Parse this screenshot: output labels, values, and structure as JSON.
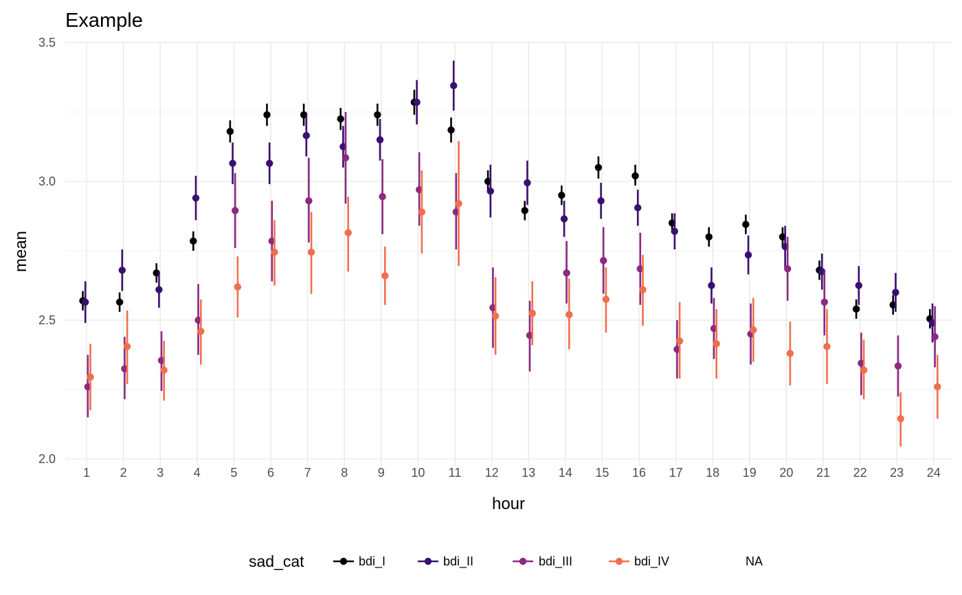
{
  "chart_data": {
    "type": "pointrange",
    "title": "Example",
    "xlabel": "hour",
    "ylabel": "mean",
    "ylim": [
      2.0,
      3.5
    ],
    "yticks": [
      "2.0",
      "2.5",
      "3.0",
      "3.5"
    ],
    "categories": [
      "1",
      "2",
      "3",
      "4",
      "5",
      "6",
      "7",
      "8",
      "9",
      "10",
      "11",
      "12",
      "13",
      "14",
      "15",
      "16",
      "17",
      "18",
      "19",
      "20",
      "21",
      "22",
      "23",
      "24"
    ],
    "grid": true,
    "legend": {
      "title": "sad_cat",
      "position": "bottom",
      "entries": [
        "bdi_I",
        "bdi_II",
        "bdi_III",
        "bdi_IV",
        "NA"
      ]
    },
    "series": [
      {
        "name": "bdi_I",
        "color": "#000004",
        "mean": [
          2.57,
          2.565,
          2.67,
          2.785,
          3.18,
          3.24,
          3.24,
          3.225,
          3.24,
          3.285,
          3.185,
          3.0,
          2.895,
          2.95,
          3.05,
          3.02,
          2.85,
          2.8,
          2.845,
          2.8,
          2.68,
          2.54,
          2.555,
          2.505
        ],
        "lower": [
          2.535,
          2.53,
          2.635,
          2.75,
          3.14,
          3.2,
          3.2,
          3.185,
          3.2,
          3.24,
          3.14,
          2.96,
          2.86,
          2.915,
          3.01,
          2.985,
          2.815,
          2.765,
          2.81,
          2.765,
          2.645,
          2.505,
          2.52,
          2.47
        ],
        "upper": [
          2.605,
          2.6,
          2.705,
          2.82,
          3.22,
          3.28,
          3.28,
          3.265,
          3.28,
          3.33,
          3.23,
          3.04,
          2.93,
          2.985,
          3.09,
          3.06,
          2.885,
          2.835,
          2.88,
          2.835,
          2.715,
          2.575,
          2.59,
          2.54
        ]
      },
      {
        "name": "bdi_II",
        "color": "#3B0F70",
        "mean": [
          2.565,
          2.68,
          2.61,
          2.94,
          3.065,
          3.065,
          3.165,
          3.125,
          3.15,
          3.285,
          3.345,
          2.965,
          2.995,
          2.865,
          2.93,
          2.905,
          2.82,
          2.625,
          2.735,
          2.765,
          2.675,
          2.625,
          2.6,
          2.49
        ],
        "lower": [
          2.49,
          2.605,
          2.545,
          2.86,
          2.99,
          2.99,
          3.09,
          3.05,
          3.075,
          3.205,
          3.255,
          2.87,
          2.915,
          2.8,
          2.865,
          2.84,
          2.755,
          2.56,
          2.665,
          2.69,
          2.61,
          2.555,
          2.53,
          2.42
        ],
        "upper": [
          2.64,
          2.755,
          2.675,
          3.02,
          3.14,
          3.14,
          3.24,
          3.2,
          3.225,
          3.365,
          3.435,
          3.06,
          3.075,
          2.93,
          2.995,
          2.97,
          2.885,
          2.69,
          2.805,
          2.84,
          2.74,
          2.695,
          2.67,
          2.56
        ]
      },
      {
        "name": "bdi_III",
        "color": "#8C2981",
        "mean": [
          2.26,
          2.325,
          2.355,
          2.5,
          2.895,
          2.785,
          2.93,
          3.085,
          2.945,
          2.97,
          2.89,
          2.545,
          2.445,
          2.67,
          2.715,
          2.685,
          2.395,
          2.47,
          2.45,
          2.685,
          2.565,
          2.345,
          2.335,
          2.44
        ],
        "lower": [
          2.15,
          2.215,
          2.245,
          2.375,
          2.76,
          2.64,
          2.78,
          2.92,
          2.81,
          2.84,
          2.755,
          2.4,
          2.315,
          2.56,
          2.595,
          2.555,
          2.29,
          2.36,
          2.34,
          2.57,
          2.445,
          2.23,
          2.225,
          2.33
        ],
        "upper": [
          2.375,
          2.44,
          2.46,
          2.63,
          3.03,
          2.93,
          3.085,
          3.25,
          3.08,
          3.105,
          3.03,
          2.69,
          2.57,
          2.785,
          2.835,
          2.815,
          2.5,
          2.58,
          2.56,
          2.8,
          2.68,
          2.455,
          2.445,
          2.55
        ]
      },
      {
        "name": "bdi_IV",
        "color": "#F06F4C",
        "mean": [
          2.295,
          2.405,
          2.32,
          2.46,
          2.62,
          2.745,
          2.745,
          2.815,
          2.66,
          2.89,
          2.92,
          2.515,
          2.525,
          2.52,
          2.575,
          2.61,
          2.425,
          2.415,
          2.465,
          2.38,
          2.405,
          2.32,
          2.145,
          2.26
        ],
        "lower": [
          2.175,
          2.27,
          2.21,
          2.34,
          2.51,
          2.625,
          2.595,
          2.675,
          2.555,
          2.74,
          2.695,
          2.375,
          2.41,
          2.395,
          2.455,
          2.48,
          2.29,
          2.29,
          2.35,
          2.265,
          2.27,
          2.215,
          2.045,
          2.145
        ],
        "upper": [
          2.415,
          2.535,
          2.425,
          2.575,
          2.73,
          2.86,
          2.89,
          2.945,
          2.765,
          3.04,
          3.145,
          2.655,
          2.64,
          2.65,
          2.69,
          2.735,
          2.565,
          2.54,
          2.58,
          2.495,
          2.54,
          2.43,
          2.24,
          2.375
        ]
      }
    ]
  }
}
